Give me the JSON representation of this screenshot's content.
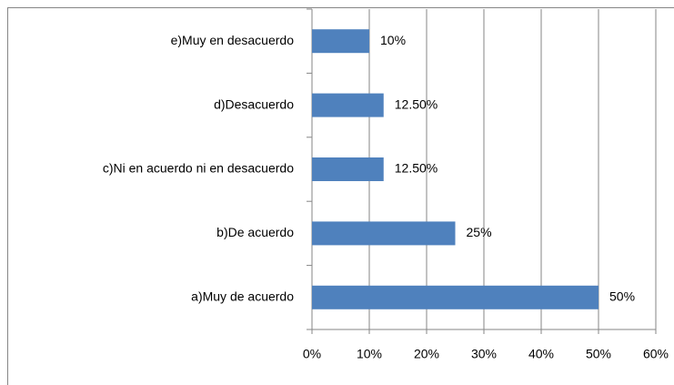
{
  "chart_data": {
    "type": "barh",
    "categories": [
      "a)Muy de acuerdo",
      "b)De acuerdo",
      "c)Ni en acuerdo ni en desacuerdo",
      "d)Desacuerdo",
      "e)Muy en desacuerdo"
    ],
    "values": [
      50,
      25,
      12.5,
      12.5,
      10
    ],
    "value_labels": [
      "50%",
      "25%",
      "12.50%",
      "12.50%",
      "10%"
    ],
    "color": "#4f81bd",
    "xlim": [
      0,
      60
    ],
    "xticks": [
      {
        "value": 0,
        "label": "0%"
      },
      {
        "value": 10,
        "label": "10%"
      },
      {
        "value": 20,
        "label": "20%"
      },
      {
        "value": 30,
        "label": "30%"
      },
      {
        "value": 40,
        "label": "40%"
      },
      {
        "value": 50,
        "label": "50%"
      },
      {
        "value": 60,
        "label": "60%"
      }
    ],
    "grid": true
  }
}
